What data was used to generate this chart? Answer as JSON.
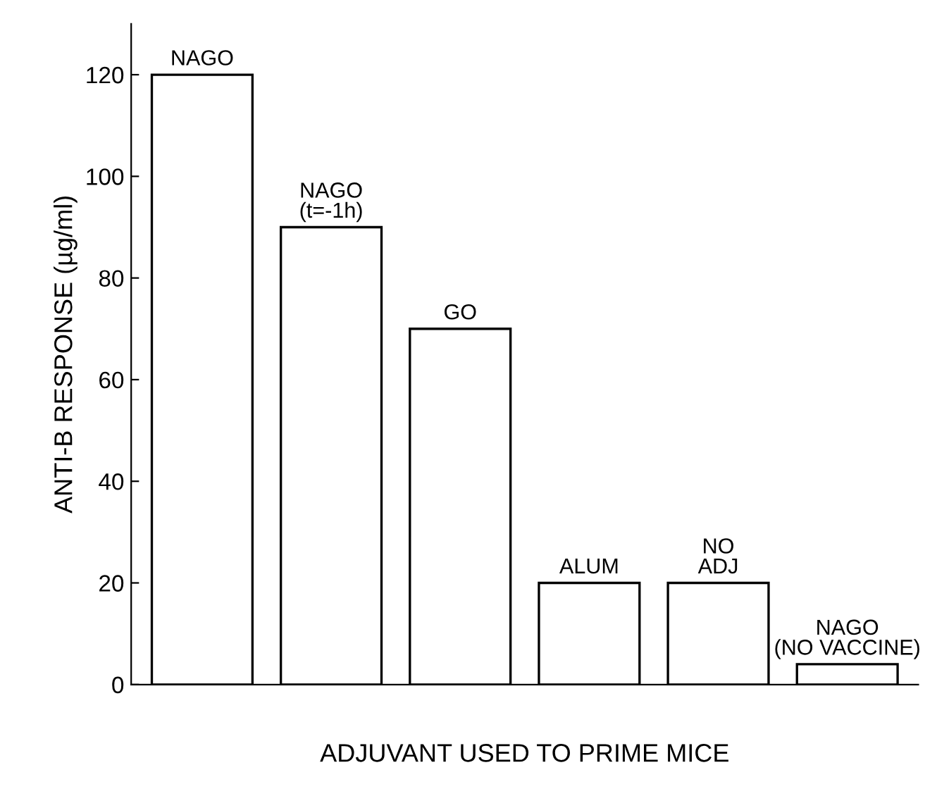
{
  "chart_data": {
    "type": "bar",
    "xlabel": "ADJUVANT USED TO PRIME MICE",
    "ylabel": "ANTI-B RESPONSE (µg/ml)",
    "categories": [
      "NAGO",
      "NAGO\n(t=-1h)",
      "GO",
      "ALUM",
      "NO\nADJ",
      "NAGO\n(NO VACCINE)"
    ],
    "values": [
      120,
      90,
      70,
      20,
      20,
      4
    ],
    "color": "#ffffff",
    "ylim": [
      0,
      130
    ],
    "yticks": [
      0,
      20,
      40,
      60,
      80,
      100,
      120
    ],
    "grid": false
  }
}
